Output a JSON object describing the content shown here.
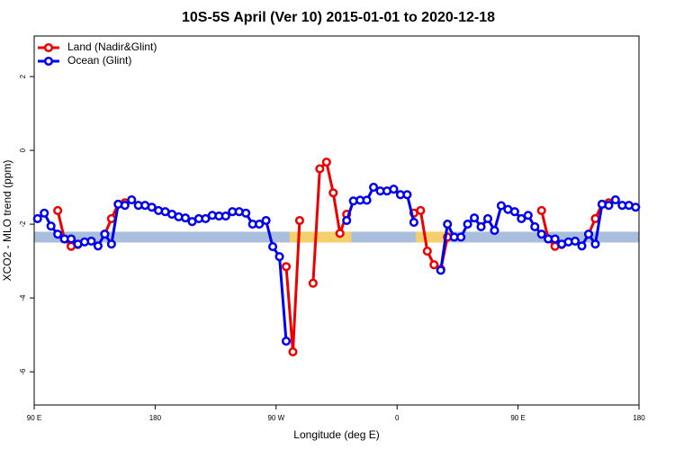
{
  "chart_data": {
    "type": "line",
    "title": "10S-5S April (Ver 10)   2015-01-01 to 2020-12-18",
    "xlabel": "Longitude (deg E)",
    "ylabel": "XCO2 - MLO trend (ppm)",
    "x": [
      92.5,
      97.5,
      102.5,
      107.5,
      112.5,
      117.5,
      122.5,
      127.5,
      132.5,
      137.5,
      142.5,
      147.5,
      152.5,
      157.5,
      162.5,
      167.5,
      172.5,
      177.5,
      182.5,
      187.5,
      192.5,
      197.5,
      202.5,
      207.5,
      212.5,
      217.5,
      222.5,
      227.5,
      232.5,
      237.5,
      242.5,
      247.5,
      252.5,
      257.5,
      262.5,
      267.5,
      272.5,
      277.5,
      282.5,
      287.5,
      292.5,
      297.5,
      302.5,
      307.5,
      312.5,
      317.5,
      322.5,
      327.5,
      332.5,
      337.5,
      342.5,
      347.5,
      352.5,
      357.5,
      362.5,
      367.5,
      372.5,
      377.5,
      382.5,
      387.5,
      392.5,
      397.5,
      402.5,
      407.5,
      412.5,
      417.5,
      422.5,
      427.5,
      432.5,
      437.5,
      442.5,
      447.5,
      452.5,
      457.5,
      462.5,
      467.5,
      472.5,
      477.5,
      482.5,
      487.5,
      492.5,
      497.5,
      502.5,
      507.5,
      512.5,
      517.5,
      522.5,
      527.5,
      532.5,
      537.5
    ],
    "series": [
      {
        "name": "Land (Nadir&Glint)",
        "color": "#ee0000",
        "values": [
          null,
          null,
          null,
          -1.63,
          -2.4,
          -2.6,
          -2.55,
          null,
          null,
          null,
          -2.27,
          -1.85,
          -1.46,
          -1.42,
          null,
          null,
          null,
          null,
          null,
          null,
          null,
          null,
          null,
          null,
          null,
          null,
          null,
          null,
          null,
          null,
          null,
          null,
          null,
          null,
          null,
          null,
          null,
          -3.15,
          -5.46,
          -1.9,
          null,
          -3.6,
          -0.5,
          -0.32,
          -1.15,
          -2.25,
          -1.73,
          null,
          null,
          null,
          null,
          null,
          null,
          null,
          null,
          null,
          -1.7,
          -1.63,
          -2.73,
          -3.1,
          -3.22,
          -2.35,
          null,
          null,
          null,
          null,
          null,
          null,
          null,
          null,
          null,
          null,
          null,
          null,
          null,
          -1.63,
          -2.4,
          -2.6,
          -2.55,
          null,
          null,
          null,
          -2.27,
          -1.85,
          -1.46,
          -1.42,
          null,
          null,
          null,
          null
        ]
      },
      {
        "name": "Ocean (Glint)",
        "color": "#0000ee",
        "values": [
          -1.85,
          -1.7,
          -2.05,
          -2.27,
          -2.4,
          -2.4,
          -2.54,
          -2.48,
          -2.46,
          -2.59,
          -2.27,
          -2.54,
          -1.46,
          -1.49,
          -1.34,
          -1.49,
          -1.49,
          -1.54,
          -1.63,
          -1.66,
          -1.73,
          -1.8,
          -1.83,
          -1.93,
          -1.85,
          -1.85,
          -1.76,
          -1.78,
          -1.78,
          -1.66,
          -1.66,
          -1.7,
          -2.0,
          -2.0,
          -1.9,
          -2.61,
          -2.88,
          -5.17,
          null,
          null,
          null,
          null,
          null,
          null,
          null,
          null,
          -1.9,
          -1.37,
          -1.35,
          -1.35,
          -1.0,
          -1.1,
          -1.1,
          -1.05,
          -1.2,
          -1.2,
          -1.95,
          null,
          null,
          null,
          -3.25,
          -2.0,
          -2.35,
          -2.35,
          -2.0,
          -1.83,
          -2.07,
          -1.85,
          -2.17,
          -1.5,
          -1.6,
          -1.66,
          -1.85,
          -1.76,
          -2.07,
          -2.27,
          -2.4,
          -2.4,
          -2.54,
          -2.48,
          -2.46,
          -2.59,
          -2.27,
          -2.54,
          -1.46,
          -1.49,
          -1.34,
          -1.49,
          -1.49,
          -1.54
        ]
      }
    ],
    "band": {
      "value": -2.35,
      "color": "#a8bedc",
      "highlight_color": "#f5cf6b",
      "highlight": [
        [
          280,
          326
        ],
        [
          374,
          398
        ]
      ]
    },
    "xlim": [
      90,
      540
    ],
    "xticks": [
      {
        "value": 90,
        "label": "90 E"
      },
      180,
      {
        "value": 270,
        "label": "90 W"
      },
      {
        "value": 360,
        "label": "0"
      },
      {
        "value": 450,
        "label": "90 E"
      },
      {
        "value": 540,
        "label": "180"
      }
    ],
    "ylim": [
      -6.9,
      3.1
    ],
    "yticks": [
      2,
      0,
      -2,
      -4,
      -6
    ],
    "legend": "top-left"
  }
}
